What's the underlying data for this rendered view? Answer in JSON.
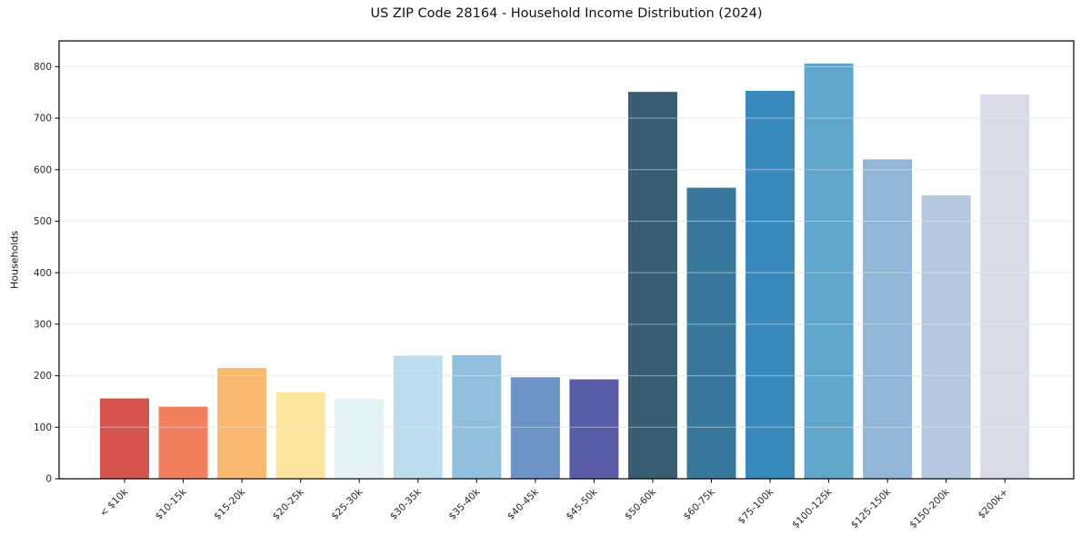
{
  "header": {
    "title": "US ZIP Code 28164 - Household Income Distribution (2024)"
  },
  "chart_data": {
    "type": "bar",
    "title": "US ZIP Code 28164 - Household Income Distribution (2024)",
    "xlabel": "",
    "ylabel": "Households",
    "categories": [
      "< $10k",
      "$10-15k",
      "$15-20k",
      "$20-25k",
      "$25-30k",
      "$30-35k",
      "$35-40k",
      "$40-45k",
      "$45-50k",
      "$50-60k",
      "$60-75k",
      "$75-100k",
      "$100-125k",
      "$125-150k",
      "$150-200k",
      "$200k+"
    ],
    "values": [
      156,
      140,
      215,
      168,
      155,
      239,
      240,
      197,
      193,
      751,
      565,
      753,
      806,
      620,
      550,
      746
    ],
    "bar_colors": [
      "#d6544e",
      "#f2805e",
      "#fbb870",
      "#fde49c",
      "#e3f2f7",
      "#bbdded",
      "#90c0dd",
      "#6b93c4",
      "#585ca7",
      "#395d72",
      "#38789c",
      "#3789bd",
      "#5fa6cb",
      "#92b6d7",
      "#b6c8df",
      "#d8dae7"
    ],
    "yticks": [
      0,
      100,
      200,
      300,
      400,
      500,
      600,
      700,
      800
    ],
    "ylim": [
      0,
      850
    ],
    "grid": "horizontal-only",
    "legend": "none",
    "x_tick_rotation": -45,
    "background_color": "#ffffff",
    "grid_color": "#e7e7e7",
    "axis_color": "#000000",
    "tick_label_color": "#262626"
  }
}
